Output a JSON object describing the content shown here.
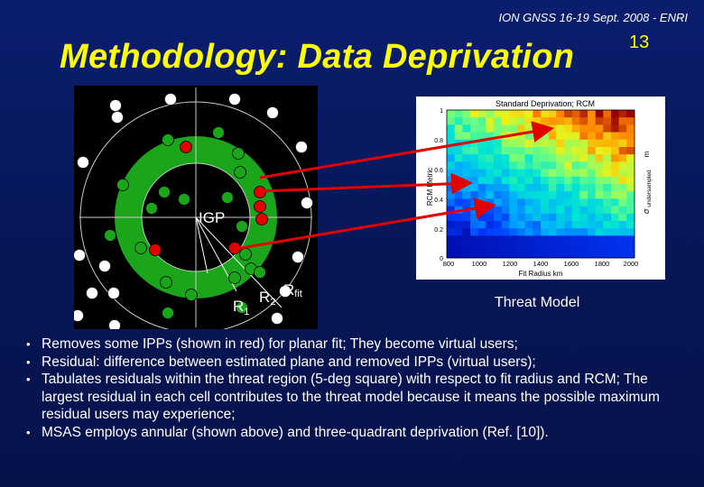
{
  "header": {
    "conference": "ION GNSS 16-19 Sept. 2008 - ENRI",
    "title": "Methodology: Data Deprivation",
    "page_number": "13"
  },
  "diagram": {
    "center_label": "IGP",
    "r1_label": "R",
    "r1_sub": "1",
    "r2_label": "R",
    "r2_sub": "2",
    "rfit_label": "R",
    "rfit_sub": "fit",
    "ring_color": "#1aa51a",
    "virtual_user_color": "#e00000",
    "inner_ipp_color": "#1aa51a",
    "outer_ipp_color": "#ffffff"
  },
  "chart": {
    "title": "Standard Deprivation; RCM",
    "ylabel": "RCM Metric",
    "xlabel": "Fit Radius  km",
    "right_label": "σ",
    "right_sub": "undersampled",
    "right_unit": "m",
    "y_ticks": [
      "1",
      "0.8",
      "0.6",
      "0.4",
      "0.2",
      "0"
    ],
    "x_ticks": [
      "800",
      "1000",
      "1200",
      "1400",
      "1600",
      "1800",
      "2000"
    ]
  },
  "caption": "Threat Model",
  "bullets": [
    "Removes some IPPs (shown in red) for planar fit; They become virtual users;",
    "Residual: difference between estimated plane and removed IPPs (virtual users);",
    "Tabulates residuals within the threat region (5-deg square) with respect to fit radius and RCM; The largest residual in each cell contributes to the threat model because it means the possible maximum residual users may experience;",
    "MSAS employs annular (shown above) and three-quadrant deprivation (Ref. [10])."
  ]
}
